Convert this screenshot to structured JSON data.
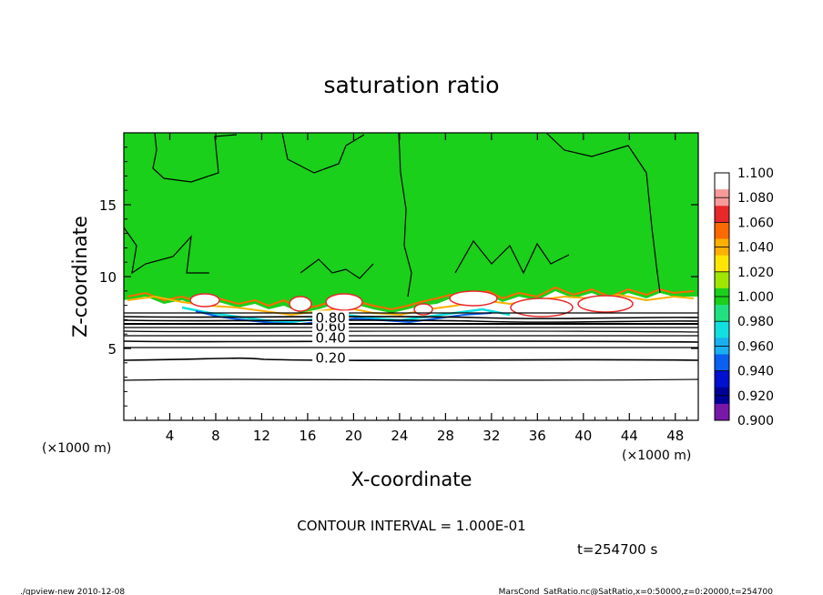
{
  "chart_data": {
    "type": "heatmap",
    "title": "saturation ratio",
    "xlabel": "X-coordinate",
    "ylabel": "Z-coordinate",
    "x_unit": "(×1000 m)",
    "z_unit": "(×1000 m)",
    "xlim": [
      0,
      50
    ],
    "ylim": [
      0,
      20
    ],
    "x_ticks": [
      "4",
      "8",
      "12",
      "16",
      "20",
      "24",
      "28",
      "32",
      "36",
      "40",
      "44",
      "48"
    ],
    "y_ticks": [
      "5",
      "10",
      "15"
    ],
    "colorbar": {
      "levels": [
        "1.100",
        "1.080",
        "1.060",
        "1.040",
        "1.020",
        "1.000",
        "0.980",
        "0.960",
        "0.940",
        "0.920",
        "0.900"
      ],
      "colors": [
        "#ffffff",
        "#f89a9a",
        "#e8282a",
        "#fa6a00",
        "#fcb000",
        "#ffe600",
        "#a0e600",
        "#1ad01a",
        "#20e080",
        "#10e0e0",
        "#18b0f0",
        "#0a60f0",
        "#0010d0",
        "#000098",
        "#7818a8"
      ]
    },
    "contour_labels": [
      {
        "text": "0.20",
        "x": 18,
        "z": 4.2
      },
      {
        "text": "0.40",
        "x": 18,
        "z": 5.6
      },
      {
        "text": "0.60",
        "x": 18,
        "z": 6.4
      },
      {
        "text": "0.80",
        "x": 18,
        "z": 7.0
      }
    ],
    "contour_interval_text": "CONTOUR INTERVAL = 1.000E-01",
    "time_text": "t=254700 s"
  },
  "footer": {
    "left": "./gpview-new  2010-12-08",
    "right": "MarsCond_SatRatio.nc@SatRatio,x=0:50000,z=0:20000,t=254700"
  }
}
